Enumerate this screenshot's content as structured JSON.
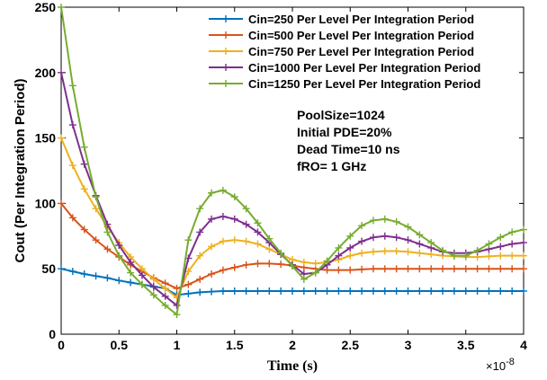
{
  "chart_data": {
    "type": "line",
    "title": "",
    "xlabel": "Time (s)",
    "ylabel": "Cout (Per Integration Period)",
    "x_multiplier_label": "×10",
    "x_multiplier_exponent": "-8",
    "xlim": [
      0,
      4
    ],
    "ylim": [
      0,
      250
    ],
    "xticks": [
      0,
      0.5,
      1,
      1.5,
      2,
      2.5,
      3,
      3.5,
      4
    ],
    "xtick_labels": [
      "0",
      "0.5",
      "1",
      "1.5",
      "2",
      "2.5",
      "3",
      "3.5",
      "4"
    ],
    "yticks": [
      0,
      50,
      100,
      150,
      200,
      250
    ],
    "ytick_labels": [
      "0",
      "50",
      "100",
      "150",
      "200",
      "250"
    ],
    "grid": false,
    "legend_position": "top-right",
    "marker": "plus",
    "annotations": [
      "PoolSize=1024",
      "Initial PDE=20%",
      "Dead Time=10 ns",
      "fRO= 1 GHz"
    ],
    "x": [
      0.0,
      0.1,
      0.2,
      0.3,
      0.4,
      0.5,
      0.6,
      0.7,
      0.8,
      0.9,
      1.0,
      1.1,
      1.2,
      1.3,
      1.4,
      1.5,
      1.6,
      1.7,
      1.8,
      1.9,
      2.0,
      2.1,
      2.2,
      2.3,
      2.4,
      2.5,
      2.6,
      2.7,
      2.8,
      2.9,
      3.0,
      3.1,
      3.2,
      3.3,
      3.4,
      3.5,
      3.6,
      3.7,
      3.8,
      3.9,
      4.0
    ],
    "series": [
      {
        "name": "Cin=250 Per Level Per Integration Period",
        "color": "#0072BD",
        "values": [
          50,
          48,
          46,
          44.5,
          43,
          41,
          39.5,
          38,
          36.5,
          35,
          30,
          31,
          32,
          32.5,
          33,
          33,
          33,
          33,
          33,
          33,
          33,
          33,
          33,
          33,
          33,
          33,
          33,
          33,
          33,
          33,
          33,
          33,
          33,
          33,
          33,
          33,
          33,
          33,
          33,
          33,
          33
        ]
      },
      {
        "name": "Cin=500 Per Level Per Integration Period",
        "color": "#D95319",
        "values": [
          100,
          89,
          80,
          72,
          65,
          59,
          53,
          48,
          43,
          39,
          35,
          38,
          42,
          46,
          49,
          51,
          53,
          54,
          54,
          53.5,
          52.5,
          51,
          50,
          49,
          49,
          49,
          49.5,
          50,
          50,
          50,
          50,
          50,
          50,
          50,
          50,
          50,
          50,
          50,
          50,
          50,
          50
        ]
      },
      {
        "name": "Cin=750 Per Level Per Integration Period",
        "color": "#EDB120",
        "values": [
          150,
          129,
          111,
          96,
          82,
          70,
          59,
          50,
          42,
          35,
          28,
          48,
          60,
          67,
          71,
          72,
          71,
          69,
          65,
          61,
          57,
          55,
          54,
          55,
          57,
          60,
          62,
          63,
          63.5,
          63.5,
          63,
          62,
          61,
          60,
          59.5,
          59,
          59,
          59.5,
          60,
          60,
          60
        ]
      },
      {
        "name": "Cin=1000 Per Level Per Integration Period",
        "color": "#7E2F8E",
        "values": [
          200,
          160,
          130,
          106,
          84,
          68,
          55,
          45,
          36,
          29,
          22,
          58,
          78,
          88,
          90,
          88,
          84,
          78,
          70,
          61,
          53,
          46,
          47,
          53,
          60,
          66,
          71,
          74,
          75,
          74,
          72,
          69,
          66,
          63,
          62,
          62,
          63,
          65,
          67,
          69,
          70
        ]
      },
      {
        "name": "Cin=1250 Per Level Per Integration Period",
        "color": "#77AC30",
        "values": [
          250,
          190,
          143,
          105,
          78,
          60,
          47,
          38,
          30,
          22,
          15,
          72,
          96,
          108,
          110,
          105,
          96,
          85,
          73,
          62,
          52,
          42,
          47,
          56,
          66,
          75,
          83,
          87,
          88,
          86,
          82,
          76,
          70,
          64,
          60,
          60,
          64,
          69,
          74,
          78,
          80
        ]
      }
    ]
  }
}
